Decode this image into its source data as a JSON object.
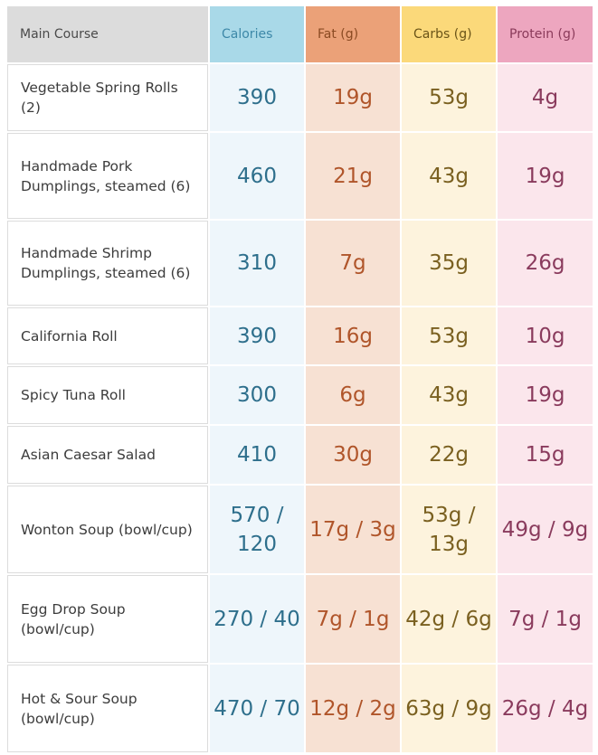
{
  "header": {
    "name": "Main Course",
    "calories": "Calories",
    "fat": "Fat (g)",
    "carbs": "Carbs (g)",
    "protein": "Protein (g)"
  },
  "rows": [
    {
      "name": "Vegetable Spring Rolls (2)",
      "calories": "390",
      "fat": "19g",
      "carbs": "53g",
      "protein": "4g"
    },
    {
      "name": "Handmade Pork Dumplings, steamed (6)",
      "calories": "460",
      "fat": "21g",
      "carbs": "43g",
      "protein": "19g"
    },
    {
      "name": "Handmade Shrimp Dumplings, steamed (6)",
      "calories": "310",
      "fat": "7g",
      "carbs": "35g",
      "protein": "26g"
    },
    {
      "name": "California Roll",
      "calories": "390",
      "fat": "16g",
      "carbs": "53g",
      "protein": "10g"
    },
    {
      "name": "Spicy Tuna Roll",
      "calories": "300",
      "fat": "6g",
      "carbs": "43g",
      "protein": "19g"
    },
    {
      "name": "Asian Caesar Salad",
      "calories": "410",
      "fat": "30g",
      "carbs": "22g",
      "protein": "15g"
    },
    {
      "name": "Wonton Soup (bowl/cup)",
      "calories": "570 / 120",
      "fat": "17g / 3g",
      "carbs": "53g / 13g",
      "protein": "49g / 9g"
    },
    {
      "name": "Egg Drop Soup (bowl/cup)",
      "calories": "270 / 40",
      "fat": "7g / 1g",
      "carbs": "42g / 6g",
      "protein": "7g / 1g"
    },
    {
      "name": "Hot & Sour Soup (bowl/cup)",
      "calories": "470 / 70",
      "fat": "12g / 2g",
      "carbs": "63g / 9g",
      "protein": "26g / 4g"
    }
  ]
}
